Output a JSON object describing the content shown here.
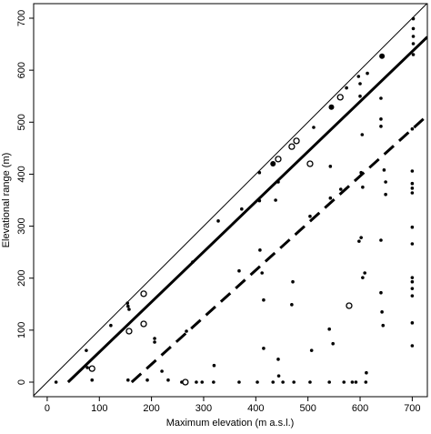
{
  "chart_data": {
    "type": "scatter",
    "x_label": "Maximum elevation (m a.s.l.)",
    "y_label": "Elevational range (m)",
    "xlim": [
      -26,
      729
    ],
    "ylim": [
      -28,
      728
    ],
    "xticks": [
      0,
      100,
      200,
      300,
      400,
      500,
      600,
      700
    ],
    "yticks": [
      0,
      100,
      200,
      300,
      400,
      500,
      600,
      700
    ],
    "grid": false,
    "series": [
      {
        "kind": "line",
        "style": "thin",
        "color": "#000000",
        "x": [
          -26,
          729
        ],
        "values": [
          -26,
          729
        ]
      },
      {
        "kind": "line",
        "style": "thick",
        "color": "#000000",
        "x": [
          40,
          729
        ],
        "values": [
          0,
          664
        ]
      },
      {
        "kind": "line",
        "style": "dashed",
        "color": "#000000",
        "x": [
          162,
          729
        ],
        "values": [
          0,
          513
        ]
      },
      {
        "kind": "points",
        "marker": "dot",
        "color": "#000000",
        "x": [
          17,
          77,
          86,
          75,
          122,
          154,
          155,
          157,
          157,
          155,
          192,
          206,
          206,
          220,
          232,
          258,
          267,
          279,
          286,
          297,
          319,
          320,
          328,
          368,
          373,
          368,
          403,
          407,
          407,
          408,
          412,
          415,
          415,
          433,
          438,
          443,
          444,
          443,
          452,
          469,
          471,
          473,
          504,
          504,
          507,
          511,
          543,
          543,
          541,
          541,
          548,
          563,
          569,
          574,
          585,
          592,
          597,
          600,
          600,
          604,
          602,
          605,
          602,
          598,
          605,
          609,
          611,
          612,
          614,
          640,
          640,
          640,
          640,
          640,
          642,
          644,
          646,
          649,
          649,
          702,
          702,
          702,
          702,
          702,
          700,
          700,
          700,
          700,
          700,
          700,
          700,
          700,
          700,
          700,
          700,
          700,
          700
        ],
        "values": [
          0,
          28,
          4,
          61,
          109,
          152,
          146,
          140,
          98,
          4,
          4,
          84,
          77,
          21,
          4,
          0,
          98,
          231,
          0,
          0,
          0,
          32,
          310,
          0,
          333,
          214,
          0,
          349,
          403,
          254,
          210,
          158,
          65,
          0,
          350,
          44,
          12,
          385,
          0,
          149,
          193,
          0,
          0,
          319,
          61,
          490,
          415,
          354,
          102,
          0,
          74,
          371,
          0,
          566,
          0,
          0,
          588,
          574,
          550,
          476,
          403,
          375,
          278,
          271,
          201,
          210,
          0,
          18,
          594,
          546,
          506,
          492,
          273,
          172,
          135,
          109,
          408,
          385,
          361,
          699,
          680,
          665,
          651,
          630,
          487,
          406,
          382,
          373,
          364,
          298,
          266,
          201,
          193,
          180,
          166,
          114,
          70
        ]
      },
      {
        "kind": "points",
        "marker": "big-dot",
        "color": "#000000",
        "x": [
          545,
          433,
          642
        ],
        "values": [
          529,
          420,
          627
        ]
      },
      {
        "kind": "points",
        "marker": "ring",
        "color": "#000000",
        "x": [
          86,
          157,
          185,
          185,
          265,
          443,
          469,
          478,
          504,
          562,
          579
        ],
        "values": [
          26,
          98,
          170,
          112,
          0,
          429,
          453,
          464,
          420,
          548,
          147
        ]
      }
    ]
  }
}
